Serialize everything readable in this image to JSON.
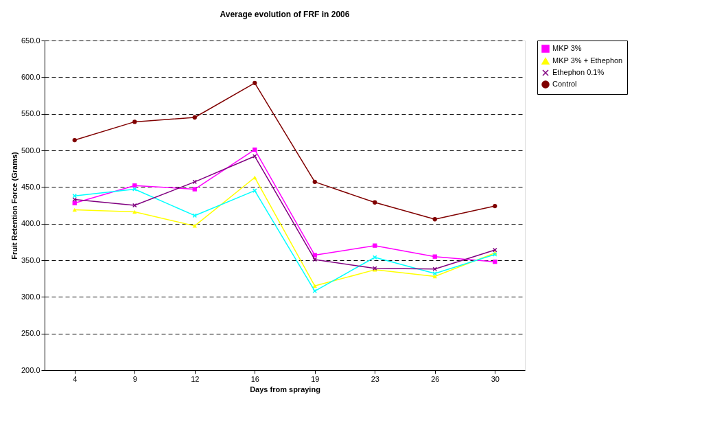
{
  "chart_data": {
    "type": "line",
    "title": "Average evolution of FRF in 2006",
    "xlabel": "Days from spraying",
    "ylabel": "Fruit Retention Force (Grams)",
    "categories": [
      "4",
      "9",
      "12",
      "16",
      "19",
      "23",
      "26",
      "30"
    ],
    "series": [
      {
        "name": "MKP 3%",
        "color": "#ff00ff",
        "marker": "square",
        "values": [
          428,
          452,
          447,
          501,
          357,
          370,
          355,
          348
        ]
      },
      {
        "name": "MKP 3% + Ethephon",
        "color": "#ffff00",
        "marker": "triangle",
        "values": [
          419,
          416,
          397,
          463,
          315,
          337,
          328,
          360
        ]
      },
      {
        "color": "#00ffff",
        "marker": "cross",
        "values": [
          438,
          447,
          411,
          445,
          308,
          354,
          332,
          358
        ]
      },
      {
        "name": "Ethephon 0.1%",
        "color": "#800080",
        "marker": "cross",
        "values": [
          433,
          425,
          457,
          492,
          351,
          339,
          338,
          364
        ]
      },
      {
        "name": "Control",
        "color": "#800000",
        "marker": "circle",
        "values": [
          514,
          539,
          545,
          592,
          457,
          429,
          406,
          424
        ]
      }
    ],
    "ylim": [
      200,
      650
    ],
    "yticks": [
      {
        "value": 200,
        "label": "200.0"
      },
      {
        "value": 250,
        "label": "250.0"
      },
      {
        "value": 300,
        "label": "300.0"
      },
      {
        "value": 350,
        "label": "350.0"
      },
      {
        "value": 400,
        "label": "400.0"
      },
      {
        "value": 450,
        "label": "450.0"
      },
      {
        "value": 500,
        "label": "500.0"
      },
      {
        "value": 550,
        "label": "550.0"
      },
      {
        "value": 600,
        "label": "600.0"
      },
      {
        "value": 650,
        "label": "650.0"
      }
    ],
    "grid": "y",
    "legend": "right",
    "line_style": "solid"
  }
}
